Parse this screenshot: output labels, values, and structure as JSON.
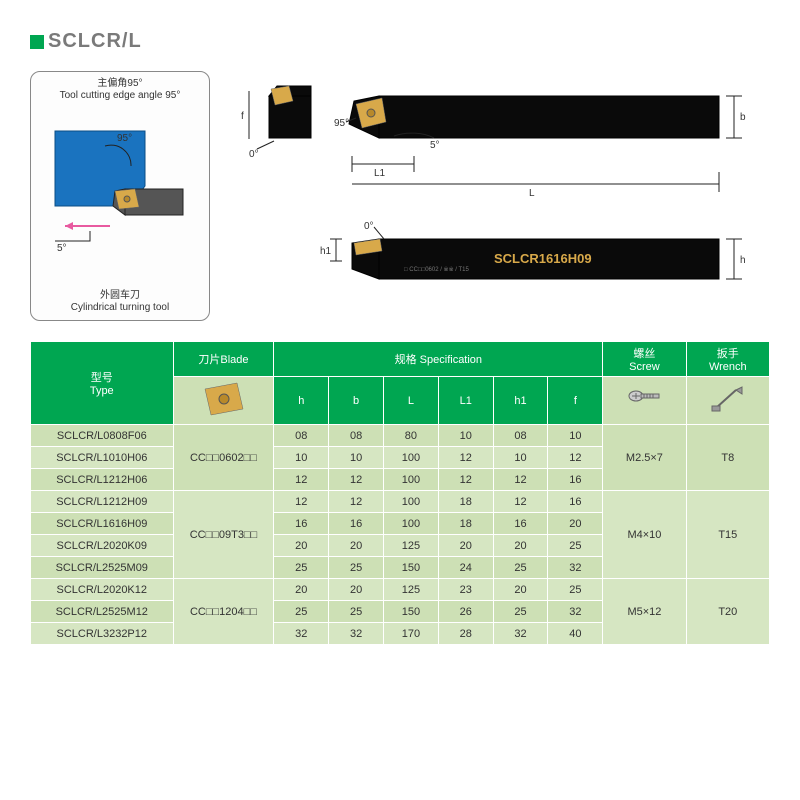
{
  "title": "SCLCR/L",
  "schematic": {
    "top_label_cn": "主偏角95°",
    "top_label_en": "Tool cutting edge angle 95°",
    "angle_main": "95°",
    "angle_rake": "5°",
    "bottom_label_cn": "外圆车刀",
    "bottom_label_en": "Cylindrical turning tool"
  },
  "toolviews": {
    "front_angle1": "95°",
    "front_angle2": "5°",
    "end_angle": "0°",
    "side_angle": "0°",
    "marking": "SCLCR1616H09",
    "dim_f": "f",
    "dim_b": "b",
    "dim_L": "L",
    "dim_L1": "L1",
    "dim_h": "h",
    "dim_h1": "h1"
  },
  "headers": {
    "type_cn": "型号",
    "type_en": "Type",
    "blade_cn": "刀片",
    "blade_en": "Blade",
    "spec_cn": "规格",
    "spec_en": "Specification",
    "screw_cn": "螺丝",
    "screw_en": "Screw",
    "wrench_cn": "扳手",
    "wrench_en": "Wrench",
    "dims": [
      "h",
      "b",
      "L",
      "L1",
      "h1",
      "f"
    ]
  },
  "groups": [
    {
      "blade": "CC□□0602□□",
      "screw": "M2.5×7",
      "wrench": "T8",
      "rows": [
        {
          "type": "SCLCR/L0808F06",
          "h": "08",
          "b": "08",
          "L": "80",
          "L1": "10",
          "h1": "08",
          "f": "10"
        },
        {
          "type": "SCLCR/L1010H06",
          "h": "10",
          "b": "10",
          "L": "100",
          "L1": "12",
          "h1": "10",
          "f": "12"
        },
        {
          "type": "SCLCR/L1212H06",
          "h": "12",
          "b": "12",
          "L": "100",
          "L1": "12",
          "h1": "12",
          "f": "16"
        }
      ]
    },
    {
      "blade": "CC□□09T3□□",
      "screw": "M4×10",
      "wrench": "T15",
      "rows": [
        {
          "type": "SCLCR/L1212H09",
          "h": "12",
          "b": "12",
          "L": "100",
          "L1": "18",
          "h1": "12",
          "f": "16"
        },
        {
          "type": "SCLCR/L1616H09",
          "h": "16",
          "b": "16",
          "L": "100",
          "L1": "18",
          "h1": "16",
          "f": "20"
        },
        {
          "type": "SCLCR/L2020K09",
          "h": "20",
          "b": "20",
          "L": "125",
          "L1": "20",
          "h1": "20",
          "f": "25"
        },
        {
          "type": "SCLCR/L2525M09",
          "h": "25",
          "b": "25",
          "L": "150",
          "L1": "24",
          "h1": "25",
          "f": "32"
        }
      ]
    },
    {
      "blade": "CC□□1204□□",
      "screw": "M5×12",
      "wrench": "T20",
      "rows": [
        {
          "type": "SCLCR/L2020K12",
          "h": "20",
          "b": "20",
          "L": "125",
          "L1": "23",
          "h1": "20",
          "f": "25"
        },
        {
          "type": "SCLCR/L2525M12",
          "h": "25",
          "b": "25",
          "L": "150",
          "L1": "26",
          "h1": "25",
          "f": "32"
        },
        {
          "type": "SCLCR/L3232P12",
          "h": "32",
          "b": "32",
          "L": "170",
          "L1": "28",
          "h1": "32",
          "f": "40"
        }
      ]
    }
  ],
  "colors": {
    "brand_green": "#00a651",
    "row_green": "#cde0b5",
    "row_green_alt": "#d6e6c2",
    "insert_gold": "#d8a94a",
    "tool_black": "#0a0a0a",
    "work_blue": "#1a73bf"
  }
}
